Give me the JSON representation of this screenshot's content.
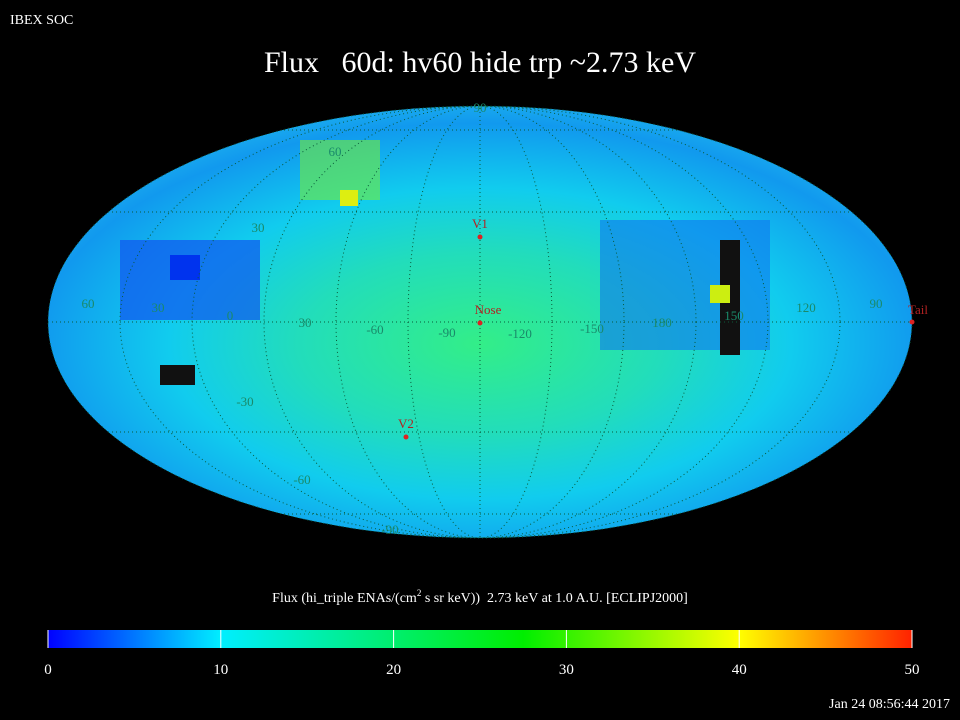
{
  "header": {
    "source": "IBEX SOC",
    "title": "Flux   60d: hv60 hide trp ~2.73 keV",
    "timestamp": "Jan 24 08:56:44 2017"
  },
  "map": {
    "latitude_labels": [
      "90",
      "60",
      "30",
      "-30",
      "-60",
      "-90"
    ],
    "longitude_labels": [
      "60",
      "30",
      "0",
      "30",
      "-60",
      "-90",
      "-120",
      "-150",
      "180",
      "150",
      "120",
      "90"
    ],
    "markers": [
      "V1",
      "Nose",
      "V2",
      "Tail"
    ]
  },
  "colorbar": {
    "label_pre": "Flux (hi_triple ENAs/(cm",
    "label_sup": "2",
    "label_post": " s sr keV))  2.73 keV at 1.0 A.U. [ECLIPJ2000]",
    "range": [
      0,
      50
    ],
    "ticks": [
      0,
      10,
      20,
      30,
      40,
      50
    ]
  }
}
